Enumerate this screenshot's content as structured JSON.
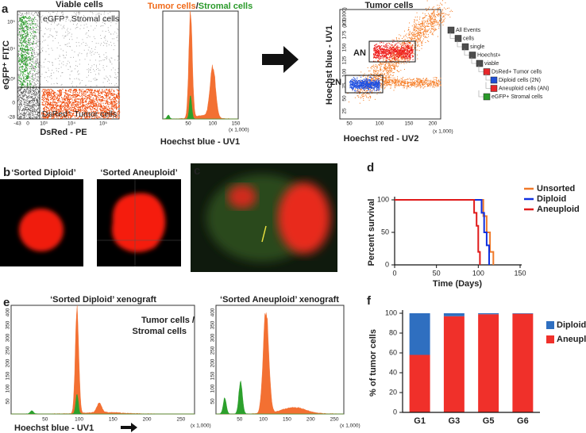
{
  "panel_labels": [
    "a",
    "b",
    "c",
    "d",
    "e",
    "f"
  ],
  "a": {
    "plot1": {
      "title": "Viable cells",
      "x_label": "DsRed - PE",
      "y_label": "eGFP⁺ FITC",
      "stromal_gate": "eGFP⁺ Stromal cells",
      "tumor_gate": "DsRed⁺ Tumor cells",
      "x_ticks": [
        "-43",
        "0",
        "10³",
        "10⁴",
        "10⁵"
      ],
      "y_ticks": [
        "10⁵",
        "10⁴",
        "10³",
        "0",
        "-28"
      ]
    },
    "plot2": {
      "title_tumor": "Tumor cells",
      "title_sep": "/",
      "title_stromal": "Stromal cells",
      "x_label": "Hoechst blue - UV1",
      "x_ticks": [
        "50",
        "100",
        "150"
      ],
      "x_scale": "(x 1,000)"
    },
    "plot3": {
      "title": "Tumor cells",
      "x_label": "Hoechst red - UV2",
      "y_label": "Hoechst blue - UV1",
      "x_ticks": [
        "50",
        "100",
        "150",
        "200"
      ],
      "y_ticks": [
        "25",
        "50",
        "75",
        "100",
        "125",
        "150",
        "175",
        "200"
      ],
      "x_scale": "(x 1,000)",
      "y_scale": "(x 1,000)",
      "gate_an": "AN",
      "gate_2n": "2N"
    },
    "hierarchy": [
      {
        "label": "All Events",
        "color": "#4d4d4d"
      },
      {
        "label": "cells",
        "color": "#4d4d4d"
      },
      {
        "label": "single",
        "color": "#4d4d4d"
      },
      {
        "label": "Hoechst+",
        "color": "#4d4d4d"
      },
      {
        "label": "viable",
        "color": "#4d4d4d"
      },
      {
        "label": "DsRed+ Tumor cells",
        "color": "#e8262a"
      },
      {
        "label": "Diploid cells (2N)",
        "color": "#1f4fd6"
      },
      {
        "label": "Aneuploid cells (AN)",
        "color": "#e8262a"
      },
      {
        "label": "eGFP+ Stromal cells",
        "color": "#2a9a2a"
      }
    ]
  },
  "b": {
    "left_title": "‘Sorted Diploid’",
    "right_title": "‘Sorted Aneuploid’"
  },
  "e": {
    "left_title": "‘Sorted Diploid’ xenograft",
    "right_title": "‘Sorted Aneuploid’ xenograft",
    "legend_tumor": "Tumor cells /",
    "legend_stromal": "Stromal cells",
    "x_label": "Hoechst blue - UV1",
    "x_ticks": [
      "50",
      "100",
      "150",
      "200",
      "250"
    ],
    "y_ticks": [
      "50",
      "100",
      "150",
      "200",
      "250",
      "300",
      "350",
      "400"
    ],
    "x_scale": "(x 1,000)"
  },
  "chart_data": [
    {
      "type": "line",
      "x_label": "Time (Days)",
      "y_label": "Percent survival",
      "xlim": [
        0,
        150
      ],
      "ylim": [
        0,
        100
      ],
      "xticks": [
        0,
        50,
        100,
        150
      ],
      "yticks": [
        0,
        50,
        100
      ],
      "legend": "upper right",
      "series": [
        {
          "name": "Unsorted",
          "color": "#f07a2a",
          "x": [
            0,
            106,
            106,
            110,
            110,
            114,
            114,
            118,
            118
          ],
          "values": [
            100,
            100,
            75,
            75,
            50,
            50,
            20,
            20,
            0
          ]
        },
        {
          "name": "Diploid",
          "color": "#1030e0",
          "x": [
            0,
            104,
            104,
            107,
            107,
            110,
            110,
            113,
            113
          ],
          "values": [
            100,
            100,
            80,
            80,
            50,
            50,
            30,
            30,
            0
          ]
        },
        {
          "name": "Aneuploid",
          "color": "#e01a1a",
          "x": [
            0,
            95,
            95,
            98,
            98,
            100,
            100,
            102,
            102
          ],
          "values": [
            100,
            100,
            80,
            80,
            60,
            60,
            20,
            20,
            0
          ]
        }
      ]
    },
    {
      "type": "bar",
      "stacked": true,
      "y_label": "% of tumor cells",
      "categories": [
        "G1",
        "G3",
        "G5",
        "G6"
      ],
      "ylim": [
        0,
        100
      ],
      "yticks": [
        0,
        20,
        40,
        60,
        80,
        100
      ],
      "legend": "right",
      "series": [
        {
          "name": "Diploid",
          "color": "#2f6fc0",
          "values": [
            42,
            3,
            1,
            0.5
          ]
        },
        {
          "name": "Aneuploid",
          "color": "#f0302a",
          "values": [
            58,
            97,
            99,
            99.5
          ]
        }
      ]
    }
  ]
}
